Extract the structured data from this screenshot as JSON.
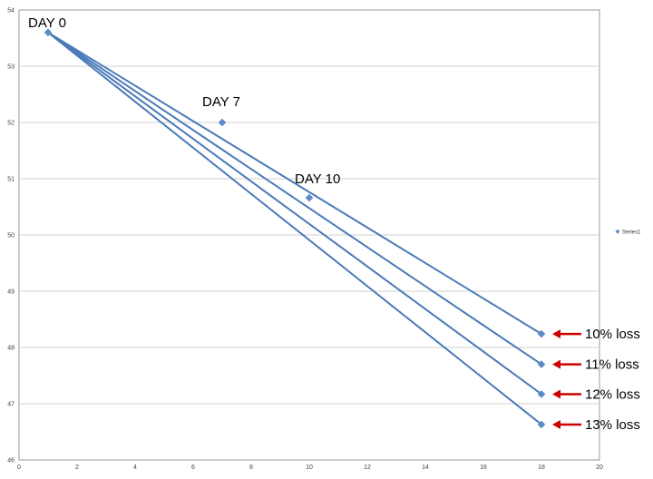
{
  "chart_data": {
    "type": "scatter",
    "xlim": [
      0,
      20
    ],
    "ylim": [
      46,
      54
    ],
    "x_ticks": [
      0,
      2,
      4,
      6,
      8,
      10,
      12,
      14,
      16,
      18,
      20
    ],
    "y_ticks": [
      46,
      47,
      48,
      49,
      50,
      51,
      52,
      53,
      54
    ],
    "grid": "horizontal",
    "legend_position": "right",
    "colors": {
      "points": "#5b8cc8",
      "lines": "#4a7ab8",
      "arrows": "#cc0000",
      "grid": "#d0d0d0"
    },
    "series": [
      {
        "name": "Series1",
        "points": [
          {
            "x": 1,
            "y": 53.6
          },
          {
            "x": 7,
            "y": 52.0
          },
          {
            "x": 10,
            "y": 50.66
          },
          {
            "x": 18,
            "y": 48.24
          },
          {
            "x": 18,
            "y": 47.7
          },
          {
            "x": 18,
            "y": 47.17
          },
          {
            "x": 18,
            "y": 46.63
          }
        ]
      }
    ],
    "trend_lines": [
      {
        "from": {
          "x": 1,
          "y": 53.6
        },
        "to": {
          "x": 18,
          "y": 48.24
        }
      },
      {
        "from": {
          "x": 1,
          "y": 53.6
        },
        "to": {
          "x": 18,
          "y": 47.7
        }
      },
      {
        "from": {
          "x": 1,
          "y": 53.6
        },
        "to": {
          "x": 18,
          "y": 47.17
        }
      },
      {
        "from": {
          "x": 1,
          "y": 53.6
        },
        "to": {
          "x": 18,
          "y": 46.63
        }
      }
    ],
    "point_labels": [
      {
        "text": "DAY 0",
        "x": 1,
        "y": 53.6
      },
      {
        "text": "DAY 7",
        "x": 7,
        "y": 52.0
      },
      {
        "text": "DAY 10",
        "x": 10,
        "y": 50.66
      }
    ],
    "annotations": [
      {
        "text": "10% loss",
        "x": 18,
        "y": 48.24
      },
      {
        "text": "11% loss",
        "x": 18,
        "y": 47.7
      },
      {
        "text": "12% loss",
        "x": 18,
        "y": 47.17
      },
      {
        "text": "13% loss",
        "x": 18,
        "y": 46.63
      }
    ]
  }
}
